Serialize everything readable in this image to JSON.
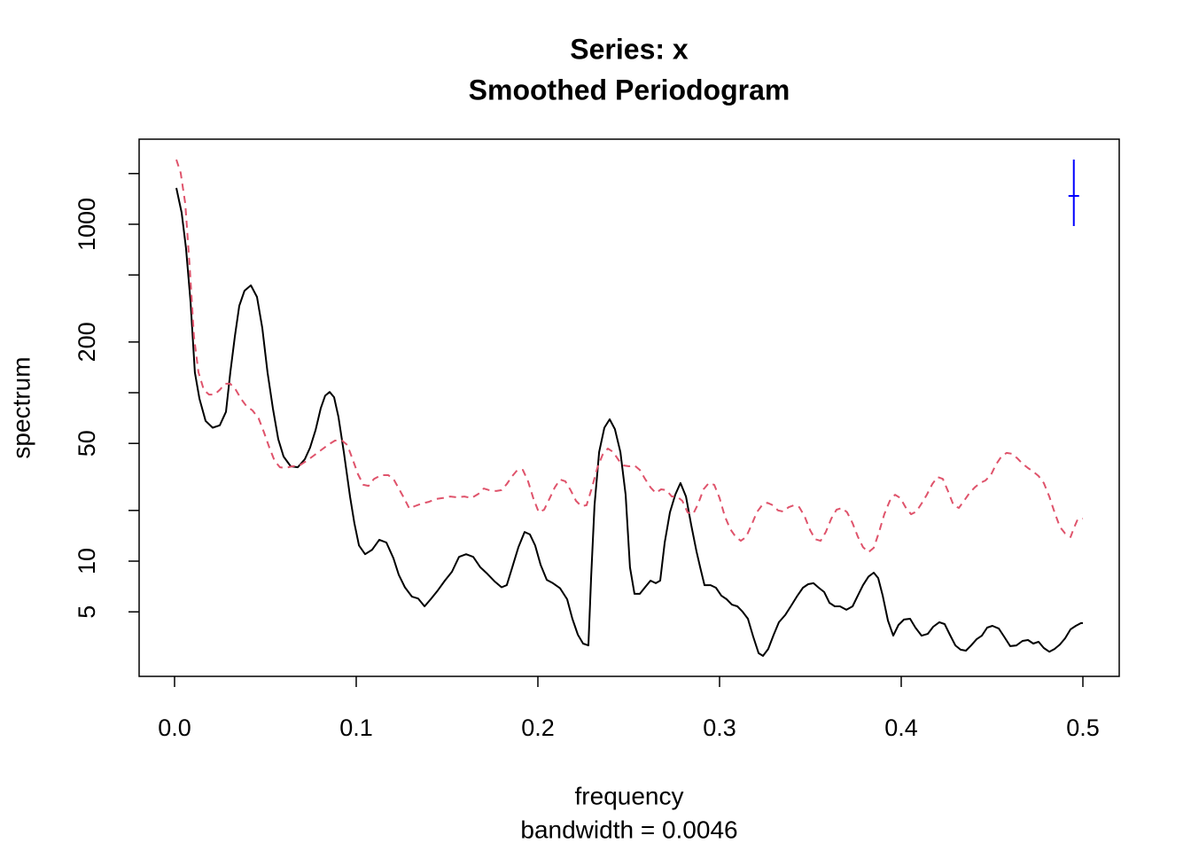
{
  "chart_data": {
    "type": "line",
    "title": "Series: x",
    "subtitle": "Smoothed Periodogram",
    "xlabel": "frequency",
    "xlabel_sub": "bandwidth = 0.0046",
    "ylabel": "spectrum",
    "ylog": true,
    "xlim": [
      -0.0195,
      0.52
    ],
    "ylim": [
      2.07,
      3200
    ],
    "xticks": [
      {
        "value": 0,
        "label": "0.0"
      },
      0.1,
      0.2,
      0.3,
      0.4,
      0.5
    ],
    "yticks": [
      5,
      10,
      {
        "value": 20,
        "label": null
      },
      50,
      {
        "value": 100,
        "label": null
      },
      200,
      {
        "value": 500,
        "label": null
      },
      1000,
      {
        "value": 2000,
        "label": null
      }
    ],
    "series": [
      {
        "color": "#000000",
        "dash": false,
        "x": [
          0.001,
          0.0039,
          0.0063,
          0.0088,
          0.0112,
          0.0137,
          0.0171,
          0.021,
          0.0249,
          0.0283,
          0.0307,
          0.0332,
          0.0356,
          0.0385,
          0.042,
          0.0454,
          0.0483,
          0.0512,
          0.0541,
          0.0571,
          0.06,
          0.0639,
          0.0678,
          0.0717,
          0.0746,
          0.0776,
          0.0805,
          0.0829,
          0.0854,
          0.0878,
          0.0902,
          0.0932,
          0.0966,
          0.099,
          0.1015,
          0.1049,
          0.1088,
          0.1127,
          0.1166,
          0.1205,
          0.1234,
          0.1268,
          0.1307,
          0.1341,
          0.1376,
          0.141,
          0.1449,
          0.1488,
          0.1527,
          0.1566,
          0.1605,
          0.1644,
          0.1683,
          0.1722,
          0.1761,
          0.18,
          0.1829,
          0.1859,
          0.1893,
          0.1927,
          0.1956,
          0.1985,
          0.2015,
          0.2049,
          0.2083,
          0.2122,
          0.2161,
          0.219,
          0.222,
          0.2249,
          0.2278,
          0.2293,
          0.2312,
          0.2337,
          0.2366,
          0.2395,
          0.2424,
          0.2454,
          0.2483,
          0.2507,
          0.2532,
          0.2561,
          0.259,
          0.262,
          0.2649,
          0.2673,
          0.2698,
          0.2727,
          0.2756,
          0.2785,
          0.2815,
          0.2844,
          0.2873,
          0.2893,
          0.2917,
          0.2951,
          0.298,
          0.301,
          0.3039,
          0.3068,
          0.3098,
          0.3127,
          0.3156,
          0.3185,
          0.3215,
          0.3239,
          0.3268,
          0.3298,
          0.3327,
          0.3361,
          0.3395,
          0.3429,
          0.3459,
          0.3488,
          0.3517,
          0.3546,
          0.3576,
          0.3605,
          0.3634,
          0.3663,
          0.3698,
          0.3732,
          0.3761,
          0.379,
          0.382,
          0.3849,
          0.3873,
          0.3898,
          0.3927,
          0.3956,
          0.3985,
          0.4015,
          0.4049,
          0.4078,
          0.4112,
          0.4146,
          0.4176,
          0.421,
          0.4239,
          0.4268,
          0.4298,
          0.4327,
          0.4356,
          0.4385,
          0.4415,
          0.4444,
          0.4473,
          0.4502,
          0.4537,
          0.4566,
          0.46,
          0.4634,
          0.4668,
          0.4698,
          0.4727,
          0.4756,
          0.4785,
          0.4815,
          0.4844,
          0.4873,
          0.4902,
          0.4932,
          0.4961,
          0.499,
          0.5
        ],
        "values": [
          1644,
          1170,
          721,
          348,
          132,
          92,
          68,
          62,
          64,
          77,
          132,
          215,
          328,
          403,
          434,
          370,
          242,
          132,
          81,
          53,
          41.8,
          36.6,
          36.1,
          40.3,
          47.2,
          60,
          81,
          96,
          101,
          94,
          72,
          44.4,
          24.2,
          16.8,
          12.4,
          11.0,
          11.7,
          13.4,
          12.9,
          10.4,
          8.3,
          7.0,
          6.15,
          6.0,
          5.39,
          5.94,
          6.7,
          7.66,
          8.65,
          10.6,
          11.0,
          10.6,
          9.2,
          8.4,
          7.6,
          7.0,
          7.2,
          9.2,
          12.1,
          14.9,
          14.4,
          12.4,
          9.5,
          7.75,
          7.4,
          6.9,
          5.94,
          4.55,
          3.66,
          3.24,
          3.16,
          8.1,
          21.5,
          44.4,
          62,
          69.5,
          60.8,
          44.4,
          24.8,
          9.2,
          6.4,
          6.4,
          7.0,
          7.66,
          7.4,
          7.66,
          12.9,
          19.5,
          24.8,
          29.1,
          24.2,
          16.4,
          11.4,
          9.2,
          7.2,
          7.2,
          6.95,
          6.24,
          5.94,
          5.52,
          5.39,
          5.01,
          4.55,
          3.57,
          2.84,
          2.74,
          3.01,
          3.66,
          4.34,
          4.78,
          5.46,
          6.24,
          6.95,
          7.3,
          7.4,
          6.95,
          6.55,
          5.66,
          5.39,
          5.39,
          5.14,
          5.39,
          6.24,
          7.2,
          8.1,
          8.55,
          7.94,
          6.24,
          4.44,
          3.61,
          4.18,
          4.5,
          4.55,
          4.03,
          3.61,
          3.7,
          4.08,
          4.34,
          4.23,
          3.66,
          3.16,
          2.98,
          2.94,
          3.16,
          3.44,
          3.61,
          4.03,
          4.13,
          3.98,
          3.57,
          3.13,
          3.16,
          3.36,
          3.4,
          3.24,
          3.32,
          3.05,
          2.9,
          3.01,
          3.2,
          3.48,
          3.94,
          4.13,
          4.29,
          4.29
        ]
      },
      {
        "color": "#df536b",
        "dash": true,
        "x": [
          0.001,
          0.0034,
          0.0059,
          0.0083,
          0.0107,
          0.0132,
          0.0161,
          0.019,
          0.022,
          0.0249,
          0.0278,
          0.0307,
          0.0337,
          0.0366,
          0.0395,
          0.0429,
          0.0463,
          0.0493,
          0.0522,
          0.0551,
          0.058,
          0.061,
          0.0649,
          0.0688,
          0.0727,
          0.0766,
          0.0805,
          0.0844,
          0.0883,
          0.0922,
          0.0951,
          0.098,
          0.101,
          0.1039,
          0.1068,
          0.1098,
          0.1137,
          0.1176,
          0.1205,
          0.1234,
          0.1263,
          0.1293,
          0.1322,
          0.1361,
          0.14,
          0.1439,
          0.1478,
          0.1517,
          0.1556,
          0.1595,
          0.1634,
          0.1673,
          0.1702,
          0.1732,
          0.1771,
          0.18,
          0.1829,
          0.1859,
          0.1888,
          0.1917,
          0.1946,
          0.1976,
          0.2005,
          0.2034,
          0.2063,
          0.2093,
          0.2122,
          0.2151,
          0.218,
          0.221,
          0.2239,
          0.2268,
          0.2298,
          0.2327,
          0.2356,
          0.2385,
          0.2415,
          0.2444,
          0.2473,
          0.2502,
          0.2532,
          0.2561,
          0.259,
          0.262,
          0.2649,
          0.2678,
          0.2707,
          0.2737,
          0.2766,
          0.2795,
          0.2824,
          0.2854,
          0.2883,
          0.2912,
          0.2941,
          0.2971,
          0.3,
          0.3029,
          0.3059,
          0.3088,
          0.3117,
          0.3146,
          0.3176,
          0.3205,
          0.3234,
          0.3263,
          0.3293,
          0.3322,
          0.3351,
          0.338,
          0.341,
          0.3439,
          0.3468,
          0.3498,
          0.3527,
          0.3556,
          0.3585,
          0.3615,
          0.3644,
          0.3673,
          0.3702,
          0.3732,
          0.3761,
          0.379,
          0.382,
          0.3849,
          0.3878,
          0.3907,
          0.3937,
          0.3966,
          0.3995,
          0.4024,
          0.4054,
          0.4083,
          0.4112,
          0.4141,
          0.4171,
          0.42,
          0.4229,
          0.4259,
          0.4288,
          0.4317,
          0.4346,
          0.4376,
          0.4405,
          0.4434,
          0.4463,
          0.4493,
          0.4522,
          0.4551,
          0.458,
          0.461,
          0.4639,
          0.4668,
          0.4698,
          0.4727,
          0.4756,
          0.4785,
          0.4815,
          0.4844,
          0.4873,
          0.4902,
          0.4932,
          0.4951,
          0.4971,
          0.5
        ],
        "values": [
          2420,
          2018,
          1321,
          566,
          215,
          132,
          104,
          97.5,
          97.5,
          104,
          113,
          113,
          104,
          92,
          83.4,
          78.5,
          70.3,
          58,
          47.2,
          39.4,
          36.1,
          35.7,
          36.6,
          37,
          39.4,
          42.3,
          45.5,
          48.9,
          52,
          52,
          48.9,
          40.3,
          32.8,
          28.4,
          28,
          30.8,
          32.4,
          32.4,
          30.8,
          27,
          23.7,
          20.5,
          21.2,
          22,
          22.5,
          23.4,
          23.7,
          24.2,
          23.9,
          24.2,
          23.7,
          25.1,
          27,
          26.4,
          26.1,
          26.4,
          28.7,
          32,
          34.8,
          34.8,
          29.8,
          23.4,
          19.5,
          20.2,
          23.4,
          27.4,
          30.5,
          29.8,
          26.4,
          22.8,
          21.2,
          21.5,
          27.4,
          35.7,
          42.8,
          46.6,
          44.4,
          39.8,
          37,
          36.6,
          37,
          34.8,
          30.8,
          27.4,
          25.4,
          26.7,
          26.4,
          24.2,
          24.2,
          22.8,
          19.5,
          19.0,
          22,
          26.7,
          29.1,
          28.4,
          23.7,
          18.5,
          15.5,
          14,
          13.2,
          13.9,
          16.4,
          19.5,
          21.5,
          22.2,
          21.5,
          20,
          19.7,
          20.9,
          21.5,
          20.9,
          18.5,
          15.3,
          13.5,
          13.2,
          14.9,
          17.9,
          20.2,
          20.7,
          19.5,
          16.8,
          14,
          12.1,
          11.3,
          12,
          14.9,
          19.0,
          22.8,
          24.8,
          23.7,
          20.9,
          19.0,
          19.7,
          22,
          24.8,
          28.7,
          31.6,
          30.8,
          25.8,
          21.5,
          20.7,
          22.8,
          25.4,
          27.4,
          29.1,
          30.1,
          32.4,
          37.5,
          41.8,
          43.9,
          43.4,
          40.8,
          37.9,
          35.7,
          34,
          32,
          29.1,
          24.2,
          19.5,
          16.0,
          14.6,
          13.9,
          15.8,
          17.7,
          17.9
        ]
      }
    ],
    "ci": {
      "color": "#0000ff",
      "x": 0.495,
      "center": 1473,
      "lower": 976,
      "upper": 2420
    }
  }
}
